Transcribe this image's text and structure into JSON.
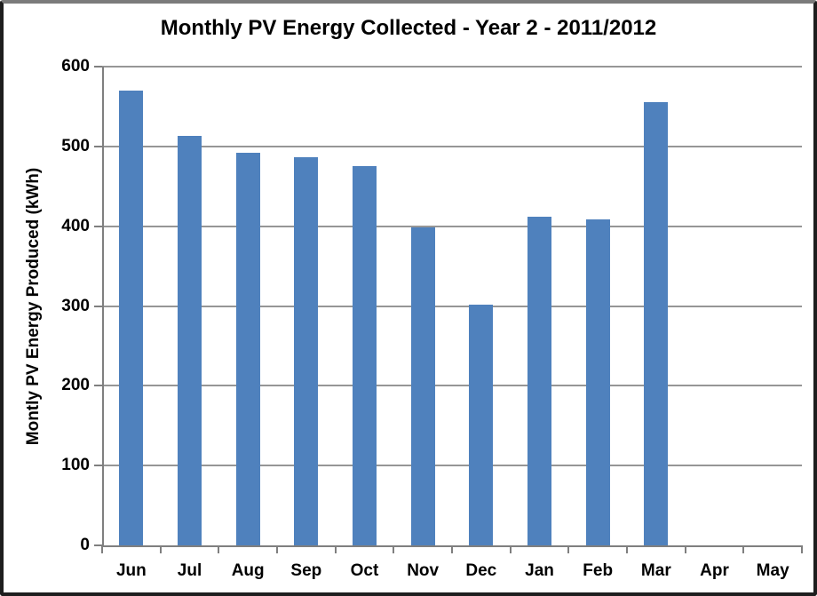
{
  "window": {
    "background_color": "#ffffff",
    "frame_border_color": "#1e1e1e"
  },
  "chart_data": {
    "type": "bar",
    "title": "Monthly PV Energy Collected - Year 2 - 2011/2012",
    "ylabel": "Montly PV Energy Produced (kWh)",
    "xlabel": "",
    "categories": [
      "Jun",
      "Jul",
      "Aug",
      "Sep",
      "Oct",
      "Nov",
      "Dec",
      "Jan",
      "Feb",
      "Mar",
      "Apr",
      "May"
    ],
    "values": [
      570,
      513,
      492,
      487,
      475,
      398,
      302,
      412,
      409,
      555,
      0,
      0
    ],
    "ylim": [
      0,
      600
    ],
    "yticks": [
      0,
      100,
      200,
      300,
      400,
      500,
      600
    ],
    "grid": "horizontal-major",
    "legend": "none",
    "bar_color": "#4F81BD",
    "gridline_color": "#969696",
    "axis_color": "#7f7f7f",
    "text_color": "#000000"
  }
}
